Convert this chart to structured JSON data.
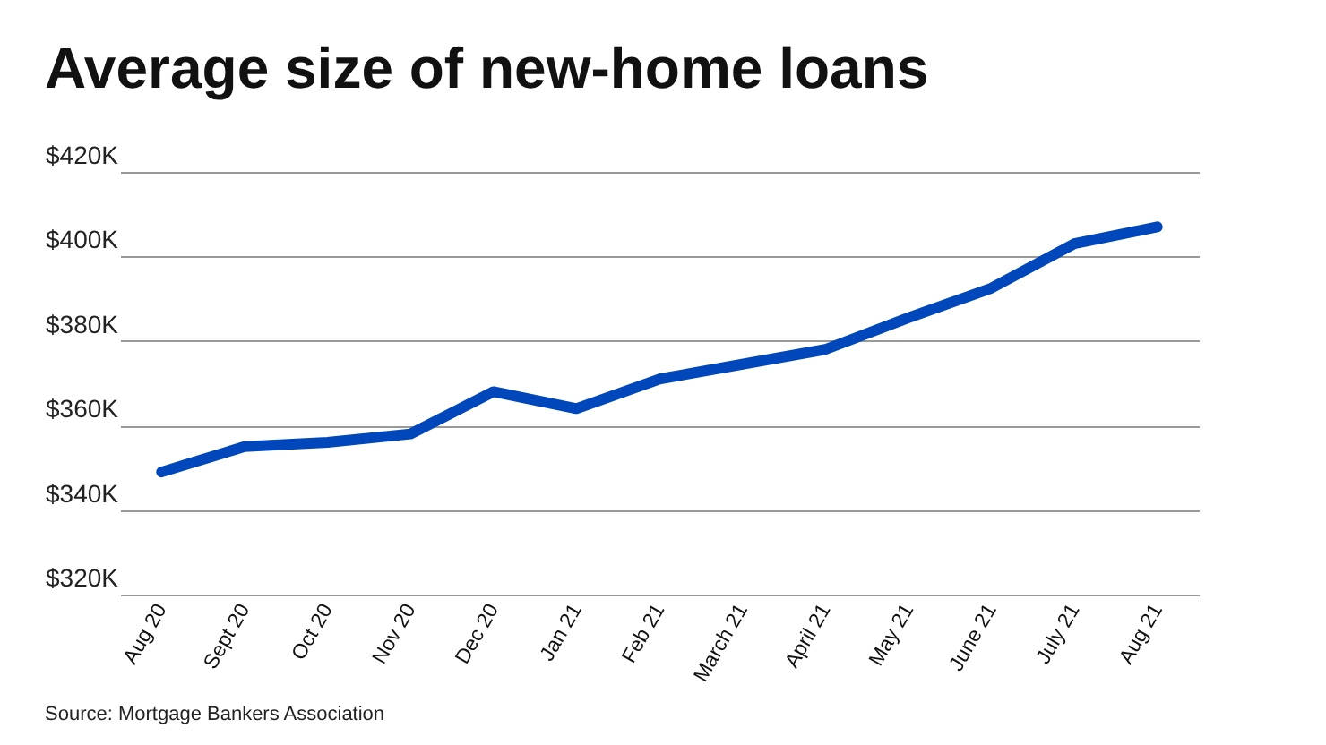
{
  "chart_data": {
    "type": "line",
    "title": "Average size of new-home loans",
    "categories": [
      "Aug 20",
      "Sept 20",
      "Oct 20",
      "Nov 20",
      "Dec 20",
      "Jan 21",
      "Feb 21",
      "March 21",
      "April 21",
      "May 21",
      "June 21",
      "July 21",
      "Aug 21"
    ],
    "series": [
      {
        "color": "#0047bb",
        "values": [
          349,
          355,
          356,
          358,
          368,
          364,
          371,
          374.5,
          378,
          385.5,
          392.5,
          403,
          407
        ]
      }
    ],
    "ylim": [
      320,
      420
    ],
    "yticks": [
      {
        "value": 320,
        "label": "$320K"
      },
      {
        "value": 340,
        "label": "$340K"
      },
      {
        "value": 360,
        "label": "$360K"
      },
      {
        "value": 380,
        "label": "$380K"
      },
      {
        "value": 400,
        "label": "$400K"
      },
      {
        "value": 420,
        "label": "$420K"
      }
    ],
    "grid": "y",
    "marker": "none",
    "line_style": "solid",
    "annotations": [
      "Source: Mortgage Bankers Association"
    ]
  }
}
